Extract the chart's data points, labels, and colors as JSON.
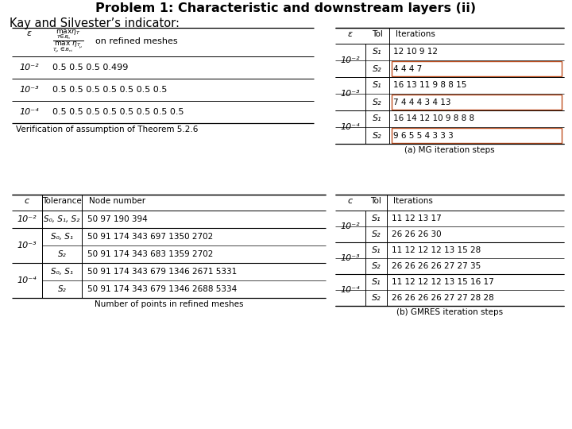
{
  "title": "Problem 1: Characteristic and downstream layers (ii)",
  "subtitle_left": "Kay and Silvester’s indicator:",
  "bg_color": "#ffffff",
  "table1": {
    "caption": "Verification of assumption of Theorem 5.2.6",
    "rows": [
      [
        "10⁻²",
        "0.5 0.5 0.5 0.499"
      ],
      [
        "10⁻³",
        "0.5 0.5 0.5 0.5 0.5 0.5 0.5"
      ],
      [
        "10⁻⁴",
        "0.5 0.5 0.5 0.5 0.5 0.5 0.5 0.5"
      ]
    ]
  },
  "table2": {
    "caption": "(a) MG iteration steps",
    "epsilon_groups": [
      {
        "eps": "10⁻²",
        "rows": [
          [
            "S₁",
            "12 10 9 12",
            false
          ],
          [
            "S₂",
            "4 4 4 7",
            true
          ]
        ]
      },
      {
        "eps": "10⁻³",
        "rows": [
          [
            "S₁",
            "16 13 11 9 8 8 15",
            false
          ],
          [
            "S₂",
            "7 4 4 4 3 4 13",
            true
          ]
        ]
      },
      {
        "eps": "10⁻⁴",
        "rows": [
          [
            "S₁",
            "16 14 12 10 9 8 8 8",
            false
          ],
          [
            "S₂",
            "9 6 5 5 4 3 3 3",
            true
          ]
        ]
      }
    ]
  },
  "table3": {
    "caption": "Number of points in refined meshes",
    "rows": [
      [
        "10⁻²",
        "S₀, S₁, S₂",
        "50 97 190 394"
      ],
      [
        "10⁻³",
        "S₀, S₁",
        "50 91 174 343 697 1350 2702"
      ],
      [
        "10⁻³",
        "S₂",
        "50 91 174 343 683 1359 2702"
      ],
      [
        "10⁻⁴",
        "S₀, S₁",
        "50 91 174 343 679 1346 2671 5331"
      ],
      [
        "10⁻⁴",
        "S₂",
        "50 91 174 343 679 1346 2688 5334"
      ]
    ],
    "eps_spans": [
      {
        "eps": "10⁻²",
        "rows": [
          0
        ]
      },
      {
        "eps": "10⁻³",
        "rows": [
          1,
          2
        ]
      },
      {
        "eps": "10⁻⁴",
        "rows": [
          3,
          4
        ]
      }
    ]
  },
  "table4": {
    "caption": "(b) GMRES iteration steps",
    "epsilon_groups": [
      {
        "eps": "10⁻²",
        "rows": [
          [
            "S₁",
            "11 12 13 17"
          ],
          [
            "S₂",
            "26 26 26 30"
          ]
        ]
      },
      {
        "eps": "10⁻³",
        "rows": [
          [
            "S₁",
            "11 12 12 12 13 15 28"
          ],
          [
            "S₂",
            "26 26 26 26 27 27 35"
          ]
        ]
      },
      {
        "eps": "10⁻⁴",
        "rows": [
          [
            "S₁",
            "11 12 12 12 13 15 16 17"
          ],
          [
            "S₂",
            "26 26 26 26 27 27 28 28"
          ]
        ]
      }
    ]
  }
}
